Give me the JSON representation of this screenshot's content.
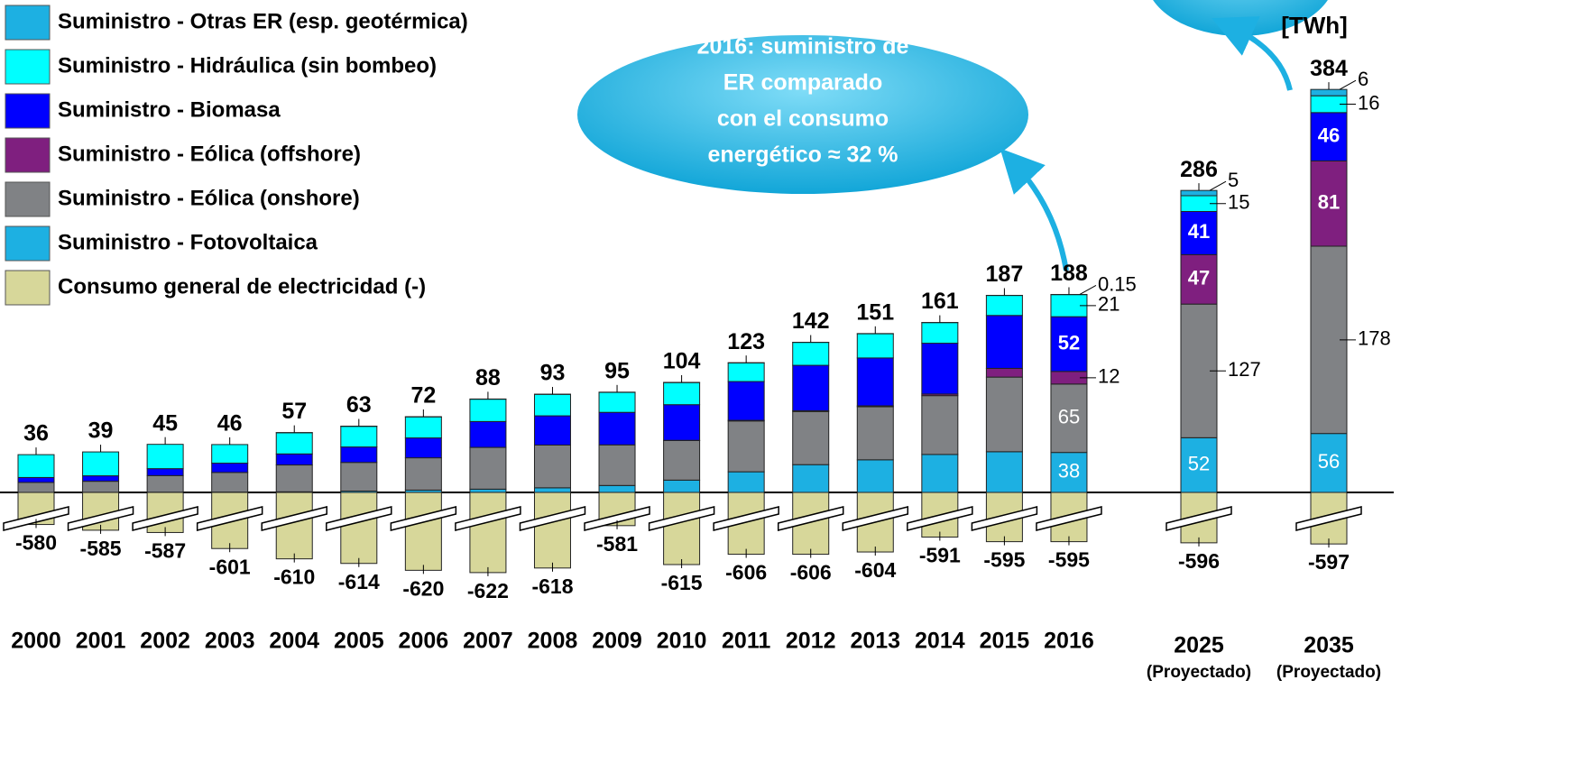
{
  "chart_data": {
    "type": "stacked_bar",
    "unit_label": "[TWh]",
    "callout": [
      "2016: suministro de",
      "ER comparado",
      "con el consumo",
      "energético ≈ 32 %"
    ],
    "categories": [
      "2000",
      "2001",
      "2002",
      "2003",
      "2004",
      "2005",
      "2006",
      "2007",
      "2008",
      "2009",
      "2010",
      "2011",
      "2012",
      "2013",
      "2014",
      "2015",
      "2016",
      "2025",
      "2035"
    ],
    "projection_note": "(Proyectado)",
    "totals": [
      36,
      39,
      45,
      46,
      57,
      63,
      72,
      88,
      93,
      95,
      104,
      123,
      142,
      151,
      161,
      187,
      188,
      286,
      384
    ],
    "series": [
      {
        "name": "Suministro - Fotovoltaica",
        "color": "#1db0e2",
        "values": [
          0,
          0.1,
          0.2,
          0.3,
          0.6,
          1.3,
          2.2,
          3.1,
          4.4,
          6.6,
          11.7,
          19.6,
          26.4,
          31,
          36.1,
          38.7,
          38,
          52,
          56
        ],
        "value_labels": [
          null,
          null,
          null,
          null,
          null,
          null,
          null,
          null,
          null,
          null,
          null,
          null,
          null,
          null,
          null,
          null,
          "38",
          "52",
          "56"
        ]
      },
      {
        "name": "Suministro - Eólica (onshore)",
        "color": "#808285",
        "values": [
          9.5,
          10.5,
          15.8,
          18.7,
          25.5,
          27.2,
          30.7,
          39.7,
          40.6,
          38.6,
          37.6,
          48.3,
          50.5,
          50.4,
          55.9,
          70.9,
          65,
          127,
          178
        ],
        "value_labels": [
          null,
          null,
          null,
          null,
          null,
          null,
          null,
          null,
          null,
          null,
          null,
          null,
          null,
          null,
          null,
          null,
          "65",
          "127",
          "178"
        ]
      },
      {
        "name": "Suministro - Eólica (offshore)",
        "color": "#7f1f7f",
        "values": [
          0,
          0,
          0,
          0,
          0,
          0,
          0,
          0,
          0,
          0,
          0.2,
          0.6,
          0.7,
          0.9,
          1.5,
          8.3,
          12,
          47,
          81
        ],
        "value_labels": [
          null,
          null,
          null,
          null,
          null,
          null,
          null,
          null,
          null,
          null,
          null,
          null,
          null,
          null,
          null,
          null,
          "12",
          "47",
          "81"
        ]
      },
      {
        "name": "Suministro - Biomasa",
        "color": "#0000ff",
        "values": [
          4.7,
          5.2,
          6.6,
          8.8,
          10.5,
          14.7,
          18.9,
          24.6,
          27.8,
          30.9,
          33.9,
          36.9,
          43.2,
          45.5,
          48.3,
          50.3,
          52,
          41,
          46
        ],
        "value_labels": [
          null,
          null,
          null,
          null,
          null,
          null,
          null,
          null,
          null,
          null,
          null,
          null,
          null,
          null,
          null,
          null,
          "52",
          "41",
          "46"
        ]
      },
      {
        "name": "Suministro - Hidráulica (sin bombeo)",
        "color": "#00ffff",
        "values": [
          21.7,
          22.7,
          23.1,
          17.7,
          20.1,
          19.6,
          20,
          21.2,
          20.4,
          19,
          21,
          17.7,
          21.8,
          23,
          19.6,
          19,
          21,
          15,
          16
        ],
        "value_labels": [
          null,
          null,
          null,
          null,
          null,
          null,
          null,
          null,
          null,
          null,
          null,
          null,
          null,
          null,
          null,
          null,
          "21",
          "15",
          "16"
        ]
      },
      {
        "name": "Suministro - Otras ER (esp. geotérmica)",
        "color": "#1db0e2",
        "values": [
          0,
          0,
          0,
          0,
          0.2,
          0.2,
          0.2,
          0.2,
          0.2,
          0.2,
          0.2,
          0.2,
          0.1,
          0.2,
          0.1,
          0.1,
          0.15,
          5,
          6
        ],
        "value_labels": [
          null,
          null,
          null,
          null,
          null,
          null,
          null,
          null,
          null,
          null,
          null,
          null,
          null,
          null,
          null,
          null,
          "0.15",
          "5",
          "6"
        ]
      },
      {
        "name": "Consumo general de electricidad (-)",
        "color": "#d7d79a",
        "negative": true,
        "values": [
          -580,
          -585,
          -587,
          -601,
          -610,
          -614,
          -620,
          -622,
          -618,
          -581,
          -615,
          -606,
          -606,
          -604,
          -591,
          -595,
          -595,
          -596,
          -597
        ]
      }
    ]
  }
}
